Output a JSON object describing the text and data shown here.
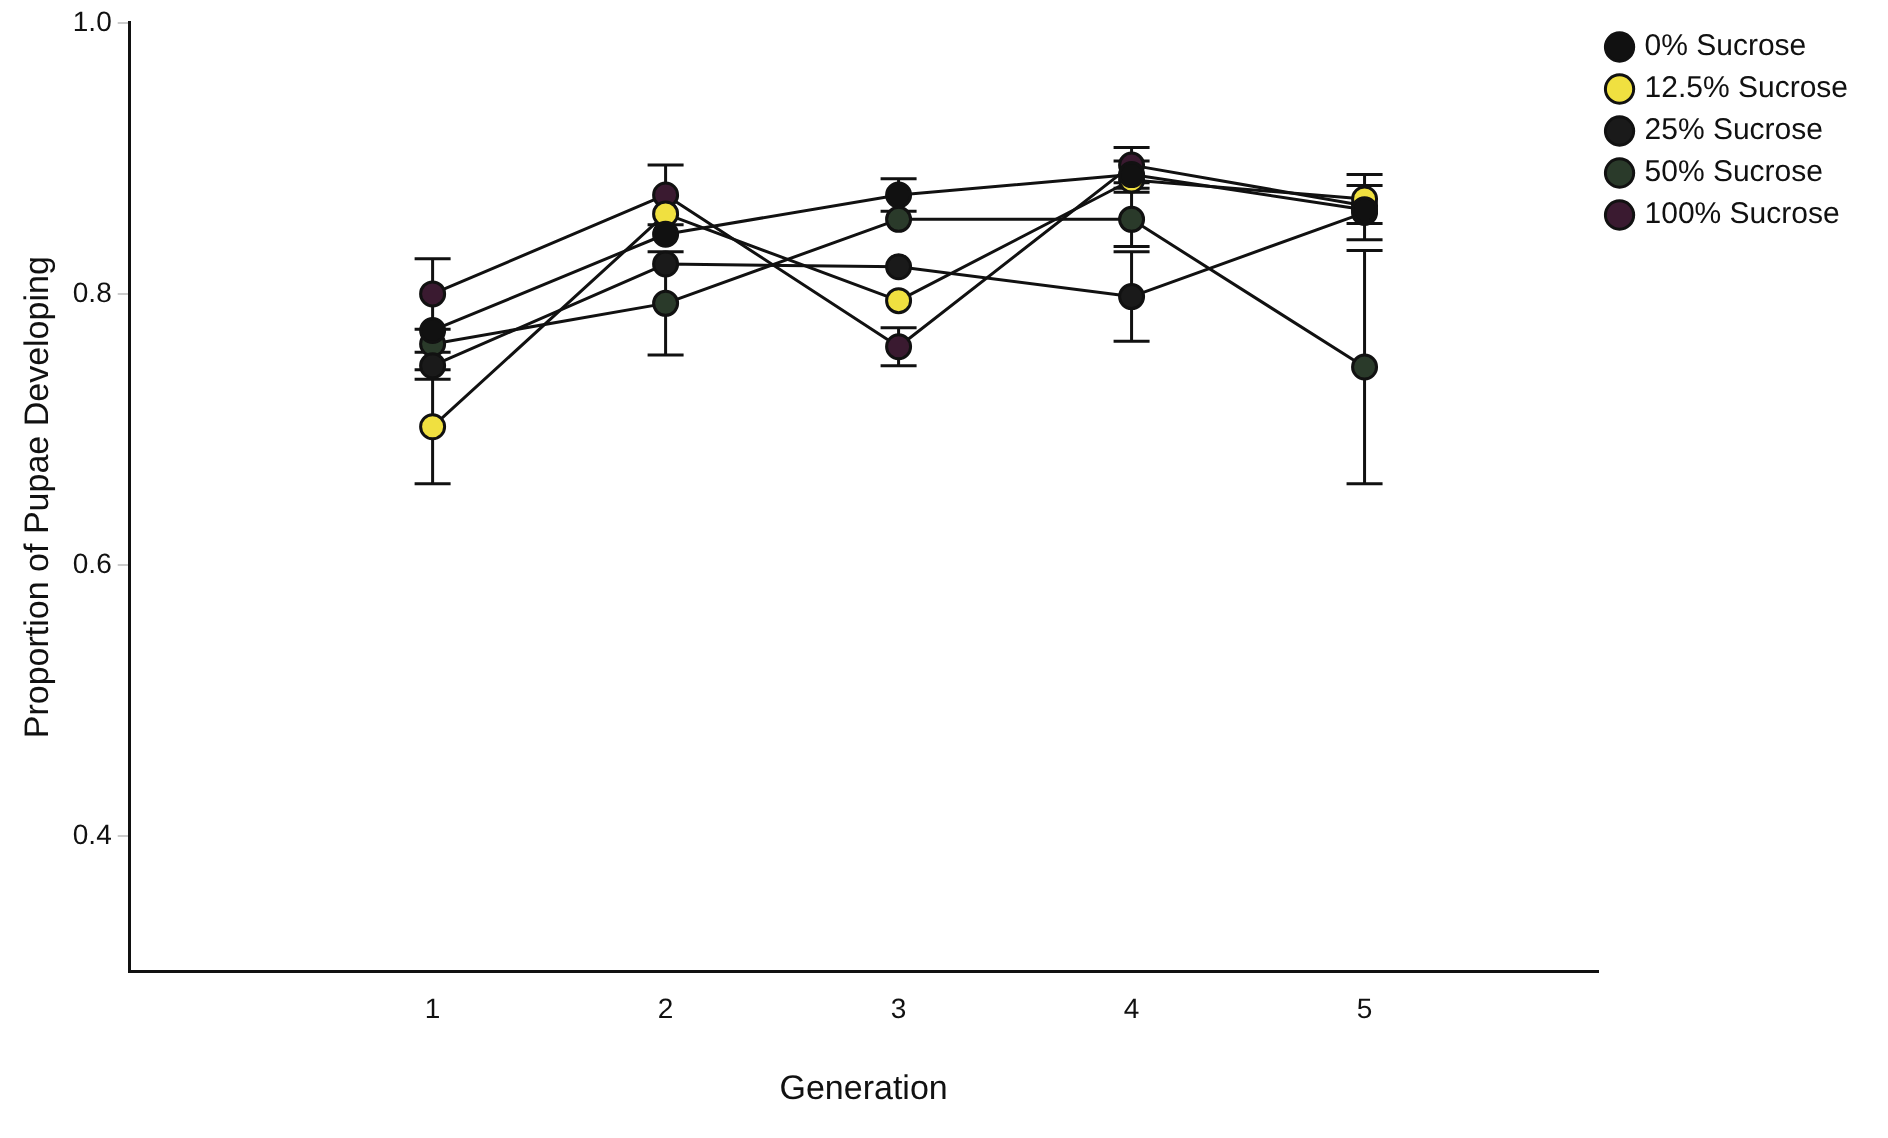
{
  "chart_data": {
    "type": "line",
    "xlabel": "Generation",
    "ylabel": "Proportion of Pupae Developing",
    "x": [
      1,
      2,
      3,
      4,
      5
    ],
    "series": [
      {
        "name": "0% Sucrose",
        "color": "#111111",
        "values": [
          0.773,
          0.844,
          0.873,
          0.888,
          0.862
        ],
        "errors": [
          null,
          null,
          0.012,
          0.01,
          null
        ]
      },
      {
        "name": "12.5% Sucrose",
        "color": "#f0e040",
        "values": [
          0.702,
          0.859,
          0.795,
          0.884,
          0.87
        ],
        "errors": [
          0.042,
          null,
          null,
          null,
          0.018
        ]
      },
      {
        "name": "25% Sucrose",
        "color": "#1a1a1a",
        "values": [
          0.747,
          0.822,
          0.82,
          0.798,
          0.86
        ],
        "errors": [
          0.01,
          null,
          null,
          0.033,
          0.02
        ]
      },
      {
        "name": "50% Sucrose",
        "color": "#2a3a2a",
        "values": [
          0.763,
          0.793,
          0.855,
          0.855,
          0.746
        ],
        "errors": [
          null,
          0.038,
          null,
          0.02,
          0.086
        ]
      },
      {
        "name": "100% Sucrose",
        "color": "#3a1a30",
        "values": [
          0.8,
          0.873,
          0.761,
          0.895,
          0.865
        ],
        "errors": [
          0.026,
          0.022,
          0.014,
          0.013,
          null
        ]
      }
    ],
    "xlim": [
      -0.3,
      6
    ],
    "xticks": [
      1,
      2,
      3,
      4,
      5
    ],
    "ylim": [
      0.3,
      1.0
    ],
    "yticks": [
      {
        "value": 0.4,
        "label": "0.4"
      },
      {
        "value": 0.6,
        "label": "0.6"
      },
      {
        "value": 0.8,
        "label": "0.8"
      },
      {
        "value": 1.0,
        "label": "1.0"
      }
    ],
    "grid": false,
    "legend": "top right",
    "marker": "circle",
    "line_style": "solid"
  }
}
